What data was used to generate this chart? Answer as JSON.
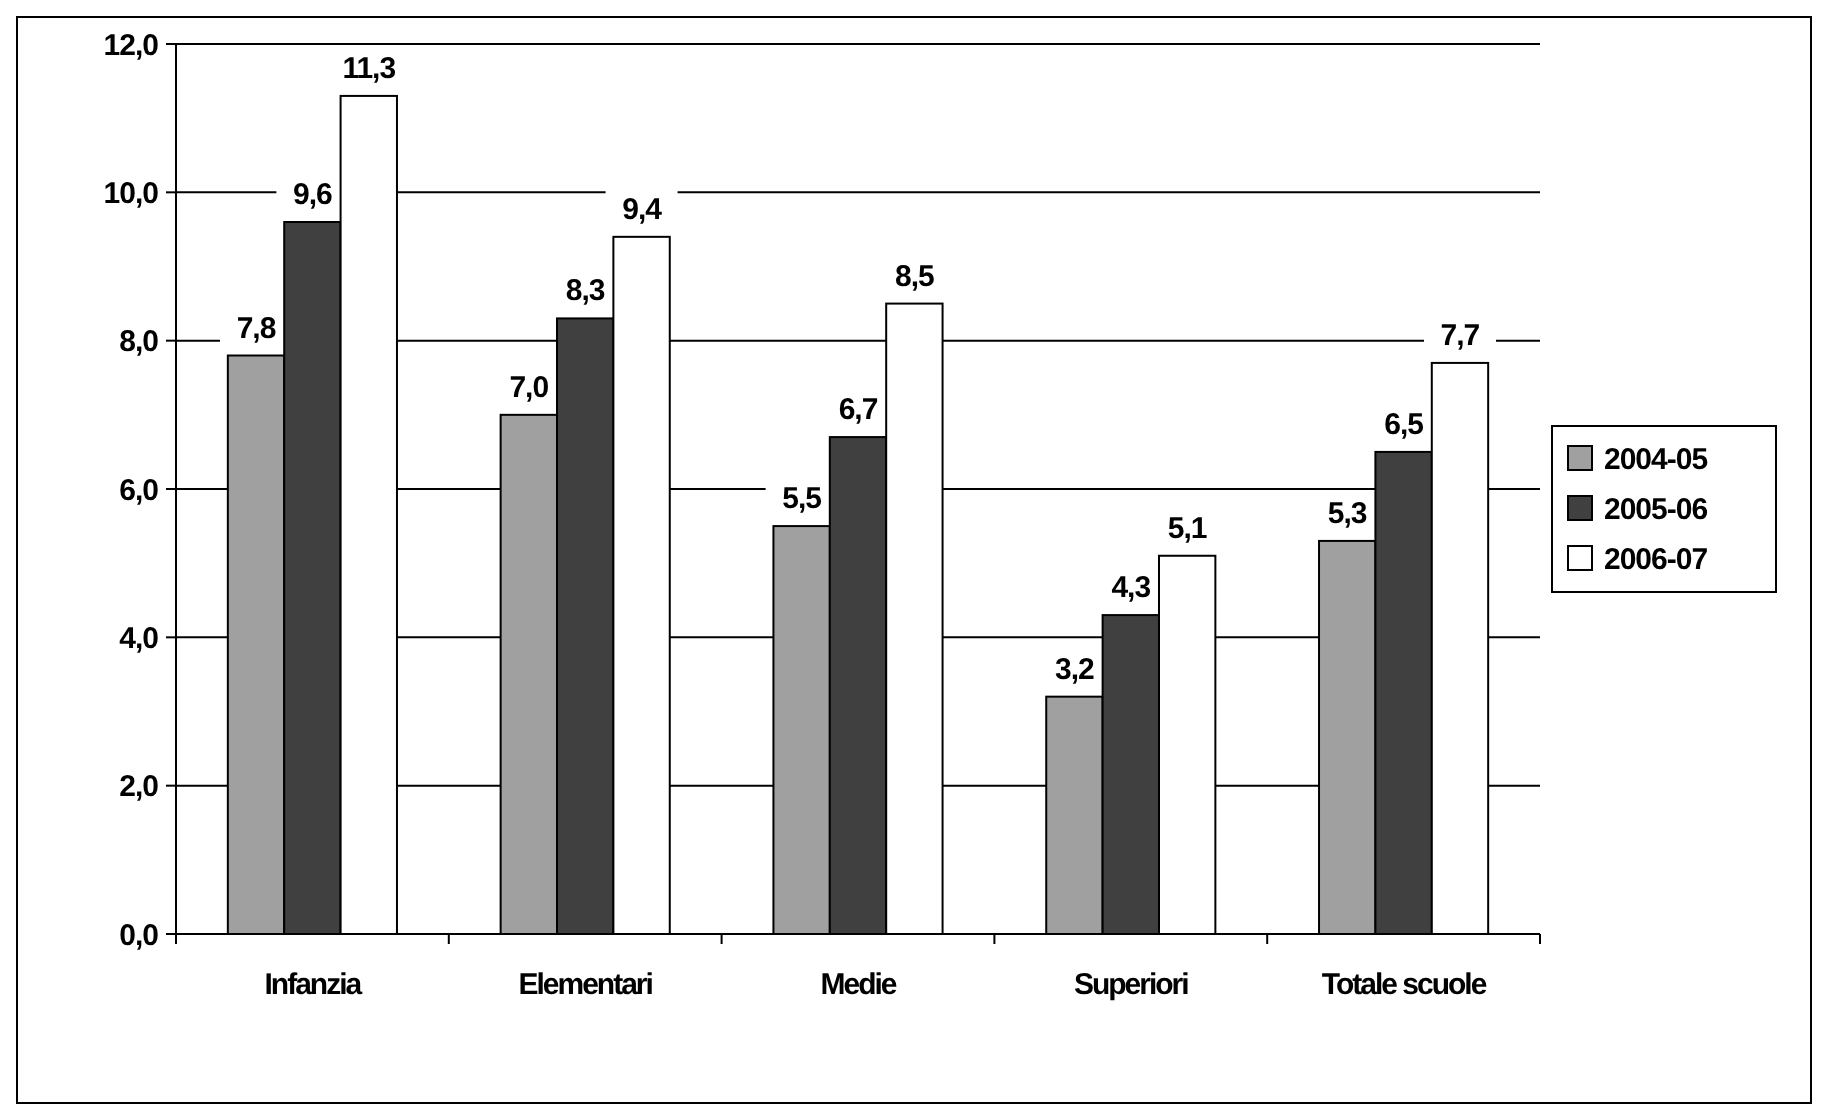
{
  "chart_data": {
    "type": "bar",
    "categories": [
      "Infanzia",
      "Elementari",
      "Medie",
      "Superiori",
      "Totale scuole"
    ],
    "series": [
      {
        "name": "2004-05",
        "color": "#a0a0a0",
        "values": [
          7.8,
          7.0,
          5.5,
          3.2,
          5.3
        ],
        "value_labels": [
          "7,8",
          "7,0",
          "5,5",
          "3,2",
          "5,3"
        ]
      },
      {
        "name": "2005-06",
        "color": "#404040",
        "values": [
          9.6,
          8.3,
          6.7,
          4.3,
          6.5
        ],
        "value_labels": [
          "9,6",
          "8,3",
          "6,7",
          "4,3",
          "6,5"
        ]
      },
      {
        "name": "2006-07",
        "color": "#ffffff",
        "values": [
          11.3,
          9.4,
          8.5,
          5.1,
          7.7
        ],
        "value_labels": [
          "11,3",
          "9,4",
          "8,5",
          "5,1",
          "7,7"
        ]
      }
    ],
    "ylim": [
      0,
      12
    ],
    "yticks": [
      {
        "value": 0,
        "label": "0,0"
      },
      {
        "value": 2,
        "label": "2,0"
      },
      {
        "value": 4,
        "label": "4,0"
      },
      {
        "value": 6,
        "label": "6,0"
      },
      {
        "value": 8,
        "label": "8,0"
      },
      {
        "value": 10,
        "label": "10,0"
      },
      {
        "value": 12,
        "label": "12,0"
      }
    ],
    "grid": "y",
    "legend": "right"
  }
}
